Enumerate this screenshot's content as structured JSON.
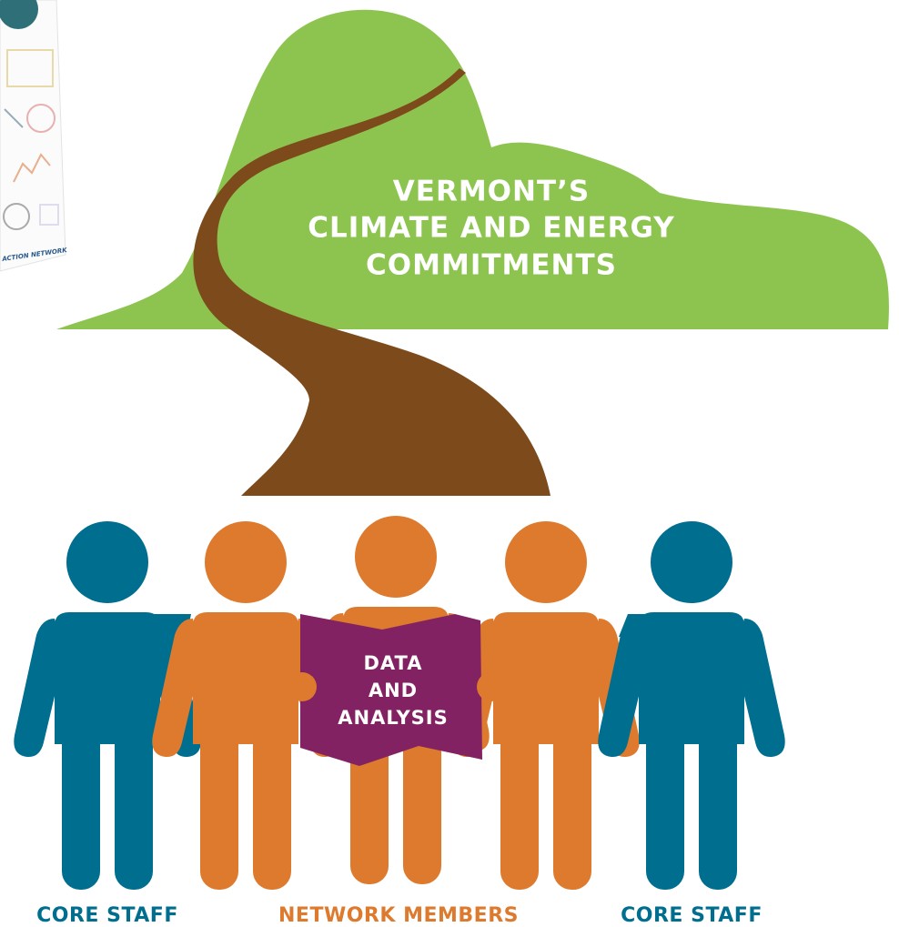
{
  "report": {
    "footer": "ACTION NETWORK"
  },
  "mountain": {
    "title_lines": [
      "VERMONT’S",
      "CLIMATE AND ENERGY",
      "COMMITMENTS"
    ]
  },
  "map": {
    "lines": [
      "DATA",
      "AND",
      "ANALYSIS"
    ]
  },
  "labels": [
    "CORE STAFF",
    "NETWORK MEMBERS",
    "CORE STAFF"
  ]
}
